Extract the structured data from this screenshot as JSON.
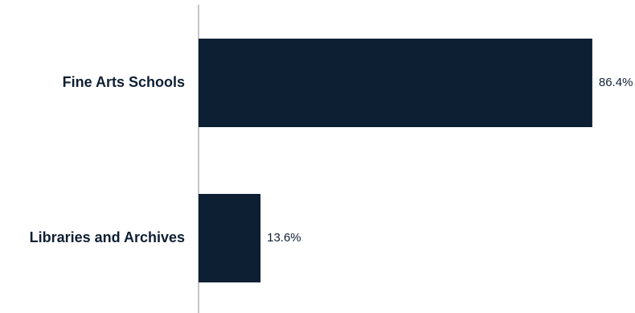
{
  "chart_data": {
    "type": "bar",
    "orientation": "horizontal",
    "categories": [
      "Fine Arts Schools",
      "Libraries and Archives"
    ],
    "values": [
      86.4,
      13.6
    ],
    "value_labels": [
      "86.4%",
      "13.6%"
    ],
    "title": "",
    "xlabel": "",
    "ylabel": "",
    "xlim": [
      0,
      100
    ],
    "grid": false,
    "legend": "none",
    "colors": {
      "bar": "#0d1f33",
      "axis": "#8c8c8c",
      "text": "#0f1f33",
      "background": "#ffffff"
    }
  }
}
